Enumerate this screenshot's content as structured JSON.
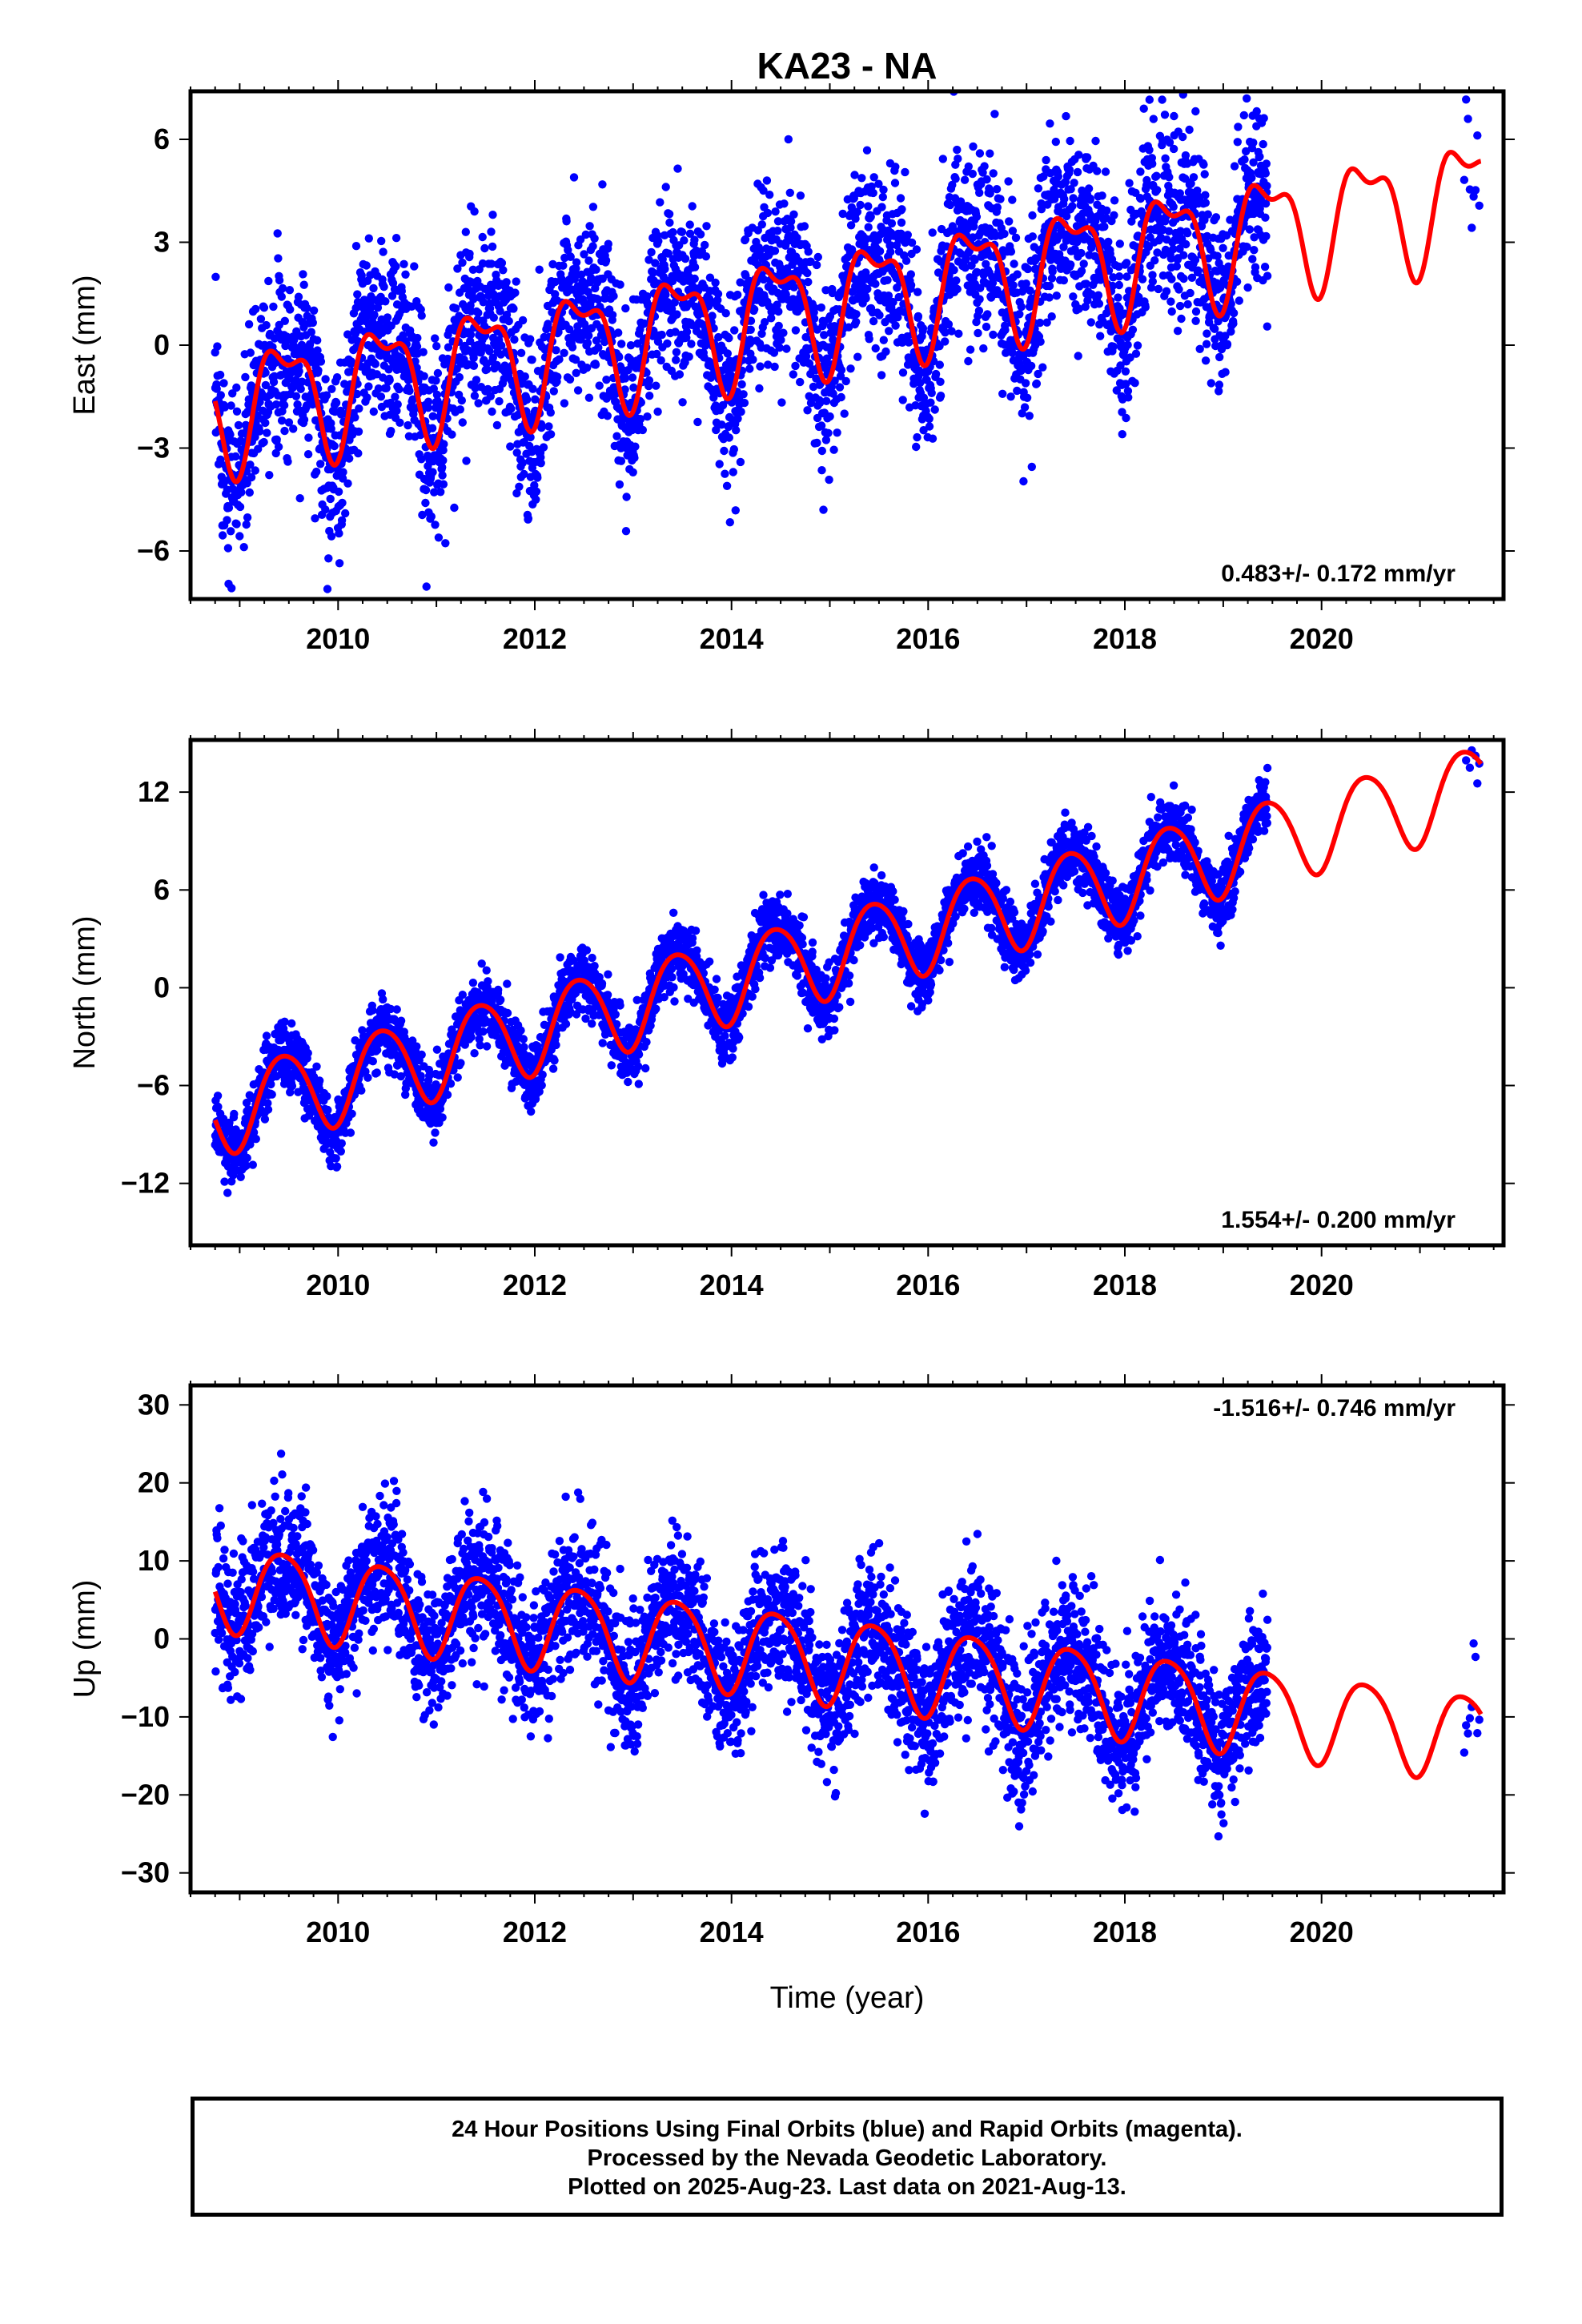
{
  "title": "KA23 - NA",
  "x_axis": {
    "label": "Time (year)",
    "ticks": [
      2010,
      2012,
      2014,
      2016,
      2018,
      2020
    ],
    "range": [
      2008.5,
      2021.85
    ]
  },
  "panels": [
    {
      "id": "east",
      "ylabel": "East (mm)",
      "ylim": [
        -7.4,
        7.4
      ],
      "yticks": [
        -6,
        -3,
        0,
        3,
        6
      ],
      "rate_text": "0.483+/- 0.172 mm/yr",
      "rate_position": "bottom-right",
      "model": {
        "offset": -1.8,
        "rate": 0.483,
        "annual_amp": 1.6,
        "semiannual_amp": 0.7
      },
      "noise": 1.3
    },
    {
      "id": "north",
      "ylabel": "North (mm)",
      "ylim": [
        -15.8,
        15.2
      ],
      "yticks": [
        -12,
        -6,
        0,
        6,
        12
      ],
      "rate_text": "1.554+/- 0.200 mm/yr",
      "rate_position": "bottom-right",
      "model": {
        "offset": -7.6,
        "rate": 1.554,
        "annual_amp": 2.6,
        "semiannual_amp": 0.3
      },
      "noise": 1.0
    },
    {
      "id": "up",
      "ylabel": "Up (mm)",
      "ylim": [
        -32.5,
        32.5
      ],
      "yticks": [
        -30,
        -20,
        -10,
        0,
        10,
        20,
        30
      ],
      "rate_text": "-1.516+/- 0.746 mm/yr",
      "rate_position": "top-right",
      "model": {
        "offset": 7.0,
        "rate": -1.516,
        "annual_amp": 5.5,
        "semiannual_amp": 0.8
      },
      "noise": 4.5
    }
  ],
  "chart_data": {
    "type": "scatter",
    "title": "KA23 - NA",
    "xlabel": "Time (year)",
    "data_span": {
      "final_orbits": [
        2008.75,
        2019.45
      ],
      "rapid_orbits": [
        2021.45,
        2021.62
      ]
    },
    "model_curve_span": [
      2008.75,
      2021.62
    ],
    "series": [
      {
        "name": "East (mm)",
        "rate_mm_per_yr": 0.483,
        "rate_sigma": 0.172,
        "ylim": [
          -7.4,
          7.4
        ]
      },
      {
        "name": "North (mm)",
        "rate_mm_per_yr": 1.554,
        "rate_sigma": 0.2,
        "ylim": [
          -15.8,
          15.2
        ]
      },
      {
        "name": "Up (mm)",
        "rate_mm_per_yr": -1.516,
        "rate_sigma": 0.746,
        "ylim": [
          -32.5,
          32.5
        ]
      }
    ],
    "colors": {
      "data": "#0000ff",
      "model": "#ff0000"
    },
    "grid": false
  },
  "footer": {
    "line1": "24 Hour Positions Using Final Orbits (blue) and Rapid Orbits (magenta).",
    "line2": "Processed by the Nevada Geodetic Laboratory.",
    "line3": "Plotted on 2025-Aug-23. Last data on 2021-Aug-13."
  }
}
